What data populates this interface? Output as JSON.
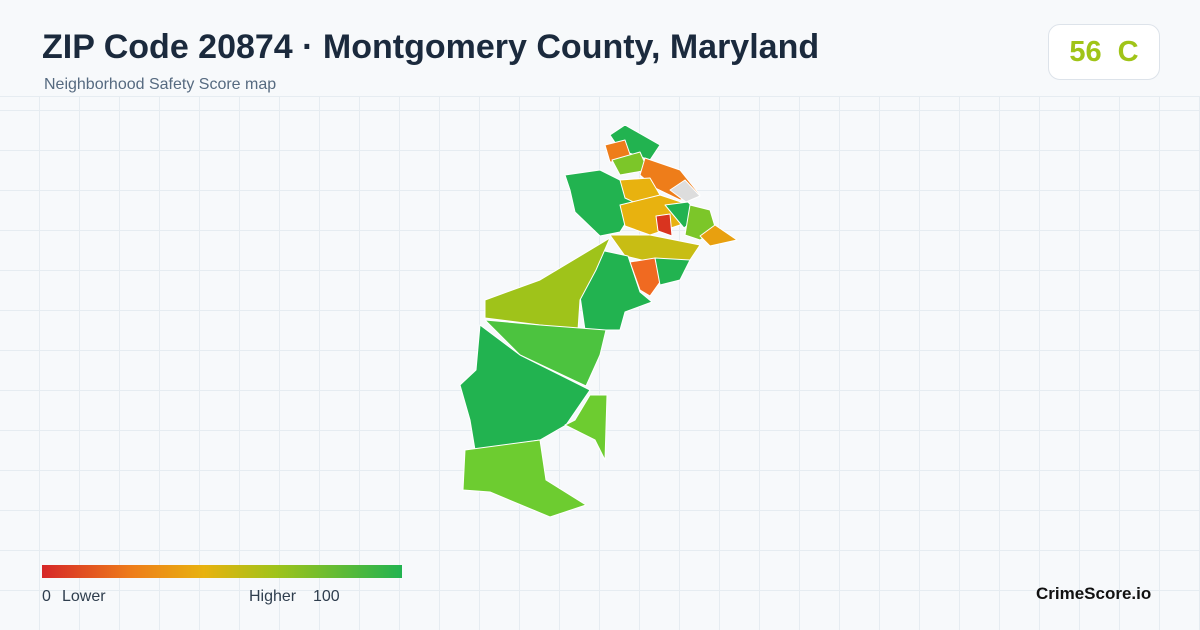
{
  "header": {
    "title": "ZIP Code 20874 · Montgomery County, Maryland",
    "subtitle": "Neighborhood Safety Score map"
  },
  "badge": {
    "score": 56,
    "grade": "C"
  },
  "legend": {
    "min_value": 0,
    "min_label": "Lower",
    "max_label": "Higher",
    "max_value": 100
  },
  "footer": {
    "brand": "CrimeScore.io"
  }
}
